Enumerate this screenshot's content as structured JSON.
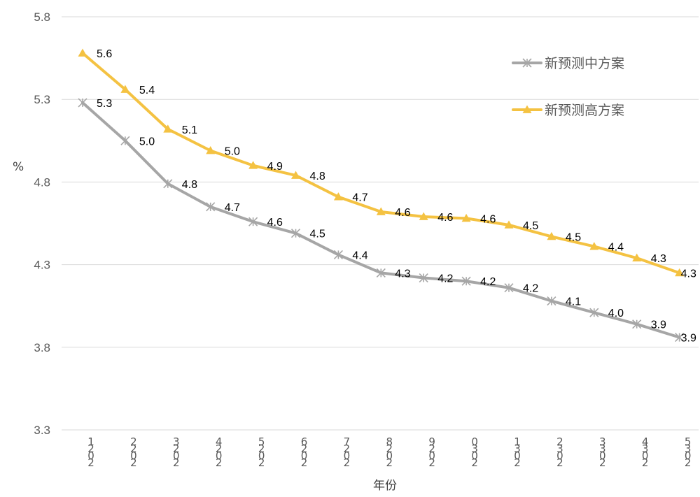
{
  "chart_data": {
    "type": "line",
    "xlabel": "年份",
    "ylabel": "%",
    "ylim": [
      3.3,
      5.8
    ],
    "yticks": [
      "3.3",
      "3.8",
      "4.3",
      "4.8",
      "5.3",
      "5.8"
    ],
    "grid": true,
    "legend_position": "top-right",
    "x_tick_labels": [
      [
        "1",
        "2",
        "0",
        "2"
      ],
      [
        "2",
        "2",
        "0",
        "2"
      ],
      [
        "3",
        "2",
        "0",
        "2"
      ],
      [
        "4",
        "2",
        "0",
        "2"
      ],
      [
        "5",
        "2",
        "0",
        "2"
      ],
      [
        "6",
        "2",
        "0",
        "2"
      ],
      [
        "7",
        "2",
        "0",
        "2"
      ],
      [
        "8",
        "2",
        "0",
        "2"
      ],
      [
        "9",
        "2",
        "0",
        "2"
      ],
      [
        "0",
        "3",
        "0",
        "2"
      ],
      [
        "1",
        "3",
        "0",
        "2"
      ],
      [
        "2",
        "3",
        "0",
        "2"
      ],
      [
        "3",
        "3",
        "0",
        "2"
      ],
      [
        "4",
        "3",
        "0",
        "2"
      ],
      [
        "5",
        "3",
        "0",
        "2"
      ]
    ],
    "series": [
      {
        "name": "新预测中方案",
        "color": "#a6a6a6",
        "marker": "asterisk",
        "values": [
          5.28,
          5.05,
          4.79,
          4.65,
          4.56,
          4.49,
          4.36,
          4.25,
          4.22,
          4.2,
          4.16,
          4.08,
          4.01,
          3.94,
          3.86
        ],
        "labels": [
          "5.3",
          "5.0",
          "4.8",
          "4.7",
          "4.6",
          "4.5",
          "4.4",
          "4.3",
          "4.2",
          "4.2",
          "4.2",
          "4.1",
          "4.0",
          "3.9",
          "3.9"
        ]
      },
      {
        "name": "新预测高方案",
        "color": "#f4c242",
        "marker": "triangle",
        "values": [
          5.58,
          5.36,
          5.12,
          4.99,
          4.9,
          4.84,
          4.71,
          4.62,
          4.59,
          4.58,
          4.54,
          4.47,
          4.41,
          4.34,
          4.25
        ],
        "labels": [
          "5.6",
          "5.4",
          "5.1",
          "5.0",
          "4.9",
          "4.8",
          "4.7",
          "4.6",
          "4.6",
          "4.6",
          "4.5",
          "4.5",
          "4.4",
          "4.3",
          "4.3"
        ]
      }
    ]
  }
}
